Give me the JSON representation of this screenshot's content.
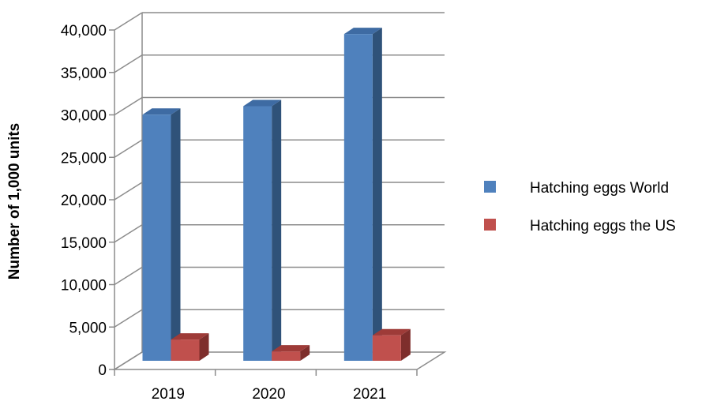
{
  "chart_data": {
    "type": "bar",
    "categories": [
      "2019",
      "2020",
      "2021"
    ],
    "series": [
      {
        "name": "Hatching eggs World",
        "values": [
          29000,
          30000,
          38500
        ],
        "color": "#4F81BD",
        "side_color": "#2F5279",
        "top_color": "#3E6BA3"
      },
      {
        "name": "Hatching eggs the US",
        "values": [
          2500,
          1100,
          3000
        ],
        "color": "#C0504D",
        "side_color": "#7E2E2C",
        "top_color": "#9E3B38"
      }
    ],
    "title": "",
    "xlabel": "",
    "ylabel": "Number of 1,000 units",
    "ylim": [
      0,
      40000
    ],
    "yticks": [
      0,
      5000,
      10000,
      15000,
      20000,
      25000,
      30000,
      35000,
      40000
    ],
    "ytick_labels": [
      "0",
      "5,000",
      "10,000",
      "15,000",
      "20,000",
      "25,000",
      "30,000",
      "35,000",
      "40,000"
    ],
    "grid": true,
    "legend": "right"
  }
}
